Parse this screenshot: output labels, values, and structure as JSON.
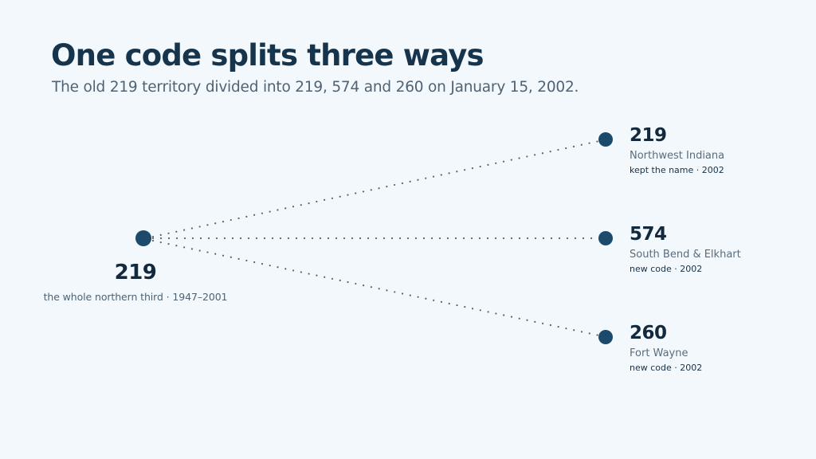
{
  "header": {
    "title": "One code splits three ways",
    "subtitle": "The old 219 territory divided into 219, 574 and 260 on January 15, 2002."
  },
  "origin": {
    "code": "219",
    "description": "the whole northern third · 1947–2001"
  },
  "branches": [
    {
      "code": "219",
      "region": "Northwest Indiana",
      "note": "kept the name · 2002"
    },
    {
      "code": "574",
      "region": "South Bend & Elkhart",
      "note": "new code · 2002"
    },
    {
      "code": "260",
      "region": "Fort Wayne",
      "note": "new code · 2002"
    }
  ],
  "colors": {
    "background": "#f3f8fc",
    "node": "#1c4a6b",
    "connector": "#4d6375",
    "heading": "#16354d"
  }
}
